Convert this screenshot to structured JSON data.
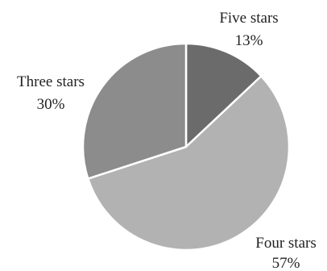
{
  "chart_data": {
    "type": "pie",
    "title": "",
    "start_angle_deg": 0,
    "direction": "clockwise",
    "slices": [
      {
        "label": "Five stars",
        "value": 13,
        "value_label": "13%",
        "color": "#6b6b6b"
      },
      {
        "label": "Four stars",
        "value": 57,
        "value_label": "57%",
        "color": "#b2b2b2"
      },
      {
        "label": "Three stars",
        "value": 30,
        "value_label": "30%",
        "color": "#8c8c8c"
      }
    ]
  }
}
